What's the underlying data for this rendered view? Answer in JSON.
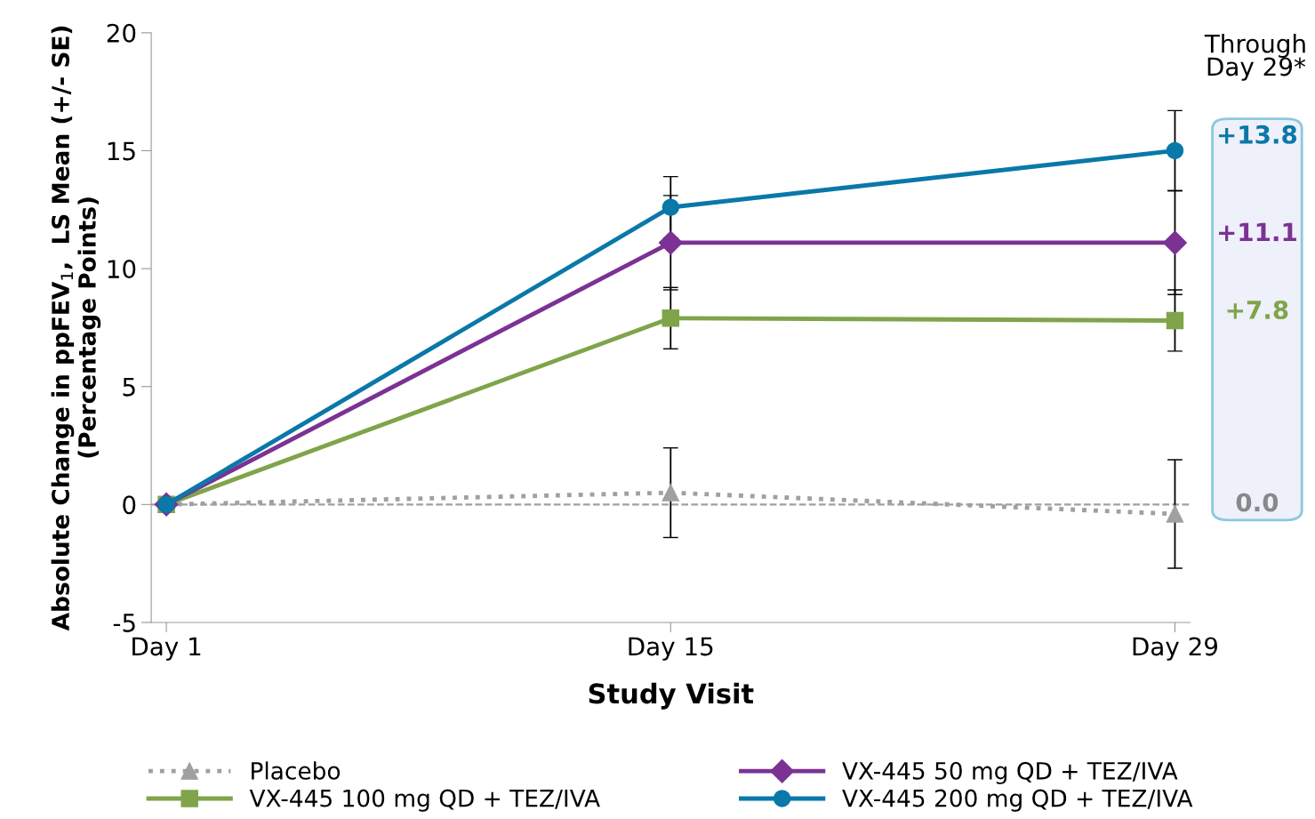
{
  "chart_data": {
    "type": "line",
    "xlabel": "Study Visit",
    "ylabel": "Absolute Change in ppFEV$_{1}$,  LS Mean (+/- SE)\n(Percentage Points)",
    "categories": [
      "Day 1",
      "Day 15",
      "Day 29"
    ],
    "series": [
      {
        "name": "Placebo",
        "color": "#a0a0a0",
        "marker": "triangle",
        "line_style": "dotted",
        "values": [
          0,
          0.5,
          -0.4
        ],
        "errors": [
          null,
          1.9,
          2.3
        ]
      },
      {
        "name": "VX-445 100 mg QD + TEZ/IVA",
        "color": "#7fa44a",
        "marker": "square",
        "line_style": "solid",
        "values": [
          0,
          7.9,
          7.8
        ],
        "errors": [
          null,
          1.3,
          1.3
        ]
      },
      {
        "name": "VX-445 50 mg QD + TEZ/IVA",
        "color": "#7b3294",
        "marker": "diamond",
        "line_style": "solid",
        "values": [
          0,
          11.1,
          11.1
        ],
        "errors": [
          null,
          2.0,
          2.2
        ]
      },
      {
        "name": "VX-445 200 mg QD + TEZ/IVA",
        "color": "#0a78a8",
        "marker": "circle",
        "line_style": "solid",
        "values": [
          0,
          12.6,
          15.0
        ],
        "errors": [
          null,
          1.3,
          1.7
        ]
      }
    ],
    "ylim": [
      -5,
      20
    ],
    "yticks": [
      -5,
      0,
      5,
      10,
      15,
      20
    ],
    "ref_lines": [
      {
        "axis": "y",
        "value": 0,
        "color": "#a0a0a0",
        "line_style": "dashed"
      }
    ],
    "annotations": [
      "Through\nDay 29*",
      "+13.8",
      "+11.1",
      "+7.8",
      "0.0"
    ],
    "grid": false,
    "legend": "bottom"
  }
}
